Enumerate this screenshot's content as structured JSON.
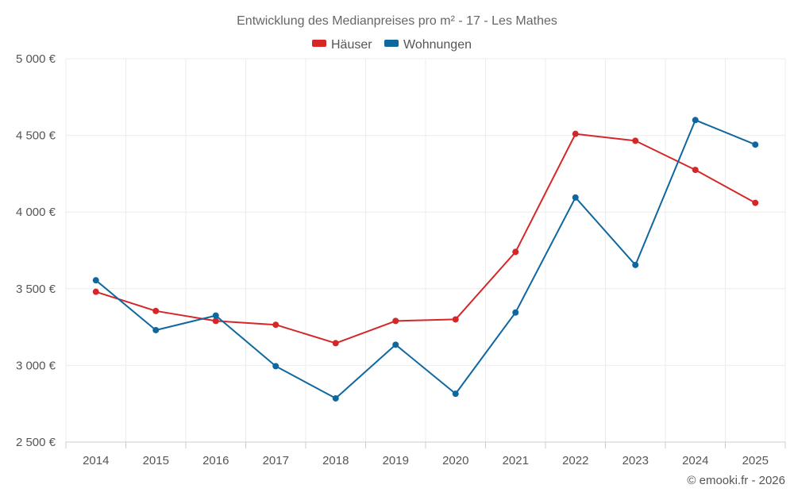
{
  "chart_data": {
    "type": "line",
    "title": "Entwicklung des Medianpreises pro m² - 17 - Les Mathes",
    "categories": [
      "2014",
      "2015",
      "2016",
      "2017",
      "2018",
      "2019",
      "2020",
      "2021",
      "2022",
      "2023",
      "2024",
      "2025"
    ],
    "ylim": [
      2500,
      5000
    ],
    "yticks": [
      2500,
      3000,
      3500,
      4000,
      4500,
      5000
    ],
    "ytick_labels": [
      "2 500 €",
      "3 000 €",
      "3 500 €",
      "4 000 €",
      "4 500 €",
      "5 000 €"
    ],
    "legend_position": "top-center",
    "grid": true,
    "series": [
      {
        "name": "Häuser",
        "color": "#d62728",
        "values": [
          3480,
          3355,
          3290,
          3265,
          3145,
          3290,
          3300,
          3740,
          4510,
          4465,
          4275,
          4060
        ]
      },
      {
        "name": "Wohnungen",
        "color": "#0f67a0",
        "values": [
          3555,
          3230,
          3325,
          2995,
          2785,
          3135,
          2815,
          3345,
          4095,
          3655,
          4600,
          4440
        ]
      }
    ],
    "credit": "© emooki.fr - 2026"
  }
}
